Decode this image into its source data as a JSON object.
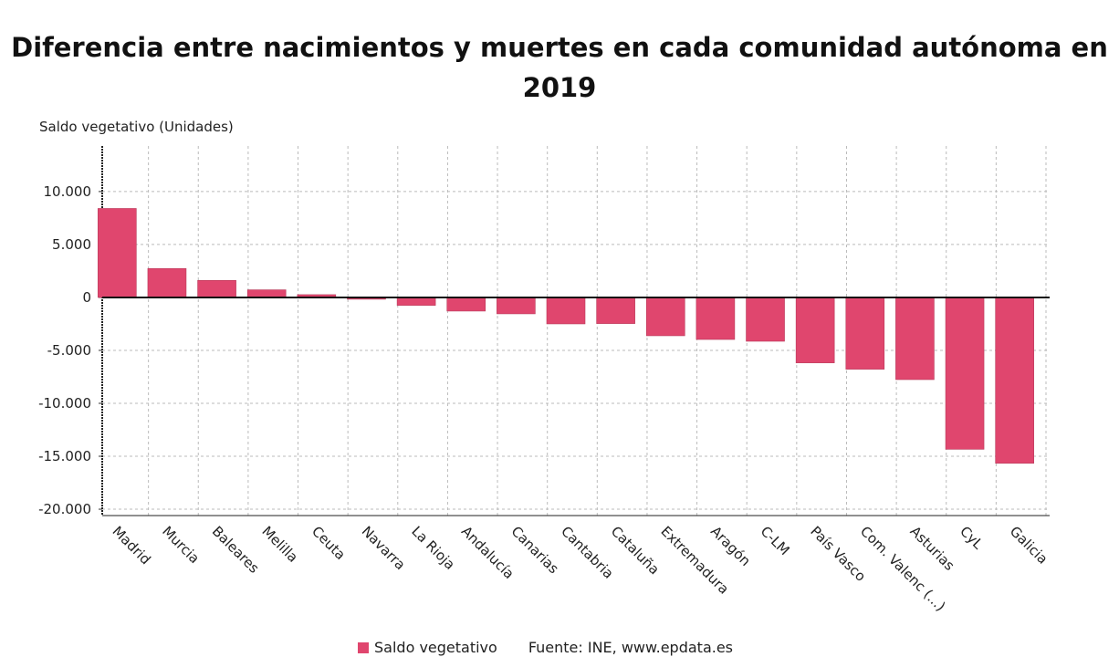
{
  "chart_data": {
    "type": "bar",
    "title": "Diferencia entre nacimientos y muertes en cada comunidad autónoma en 2019",
    "ylabel": "Saldo vegetativo (Unidades)",
    "xlabel": "",
    "categories": [
      "Madrid",
      "Murcia",
      "Baleares",
      "Melilla",
      "Ceuta",
      "Navarra",
      "La Rioja",
      "Andalucía",
      "Canarias",
      "Cantabria",
      "Cataluña",
      "Extremadura",
      "Aragón",
      "C-LM",
      "País Vasco",
      "Com. Valenc (...)",
      "Asturias",
      "CyL",
      "Galicia"
    ],
    "series": [
      {
        "name": "Saldo vegetativo",
        "values": [
          8400,
          2730,
          1610,
          720,
          260,
          -170,
          -750,
          -1290,
          -1550,
          -2500,
          -2470,
          -3620,
          -3970,
          -4140,
          -6180,
          -6780,
          -7760,
          -14340,
          -15660
        ]
      }
    ],
    "ylim": [
      -20600,
      14300
    ],
    "yticks": [
      10000,
      5000,
      0,
      -5000,
      -10000,
      -15000,
      -20000
    ],
    "ytick_labels": [
      "10.000",
      "5.000",
      "0",
      "-5.000",
      "-10.000",
      "-15.000",
      "-20.000"
    ],
    "grid": true,
    "legend_placement": "bottom",
    "bar_color": "#e0466e",
    "source": "Fuente: INE, www.epdata.es"
  }
}
